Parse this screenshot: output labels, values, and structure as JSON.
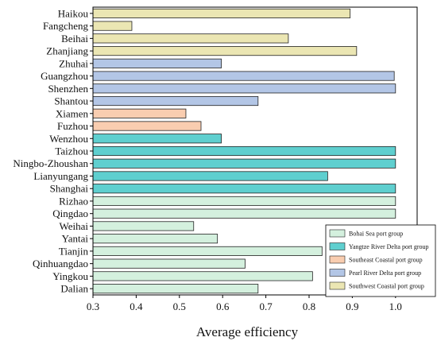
{
  "chart_data": {
    "type": "bar",
    "orientation": "horizontal",
    "xlabel": "Average efficiency",
    "xlim": [
      0.3,
      1.05
    ],
    "xticks": [
      "0.3",
      "0.4",
      "0.5",
      "0.6",
      "0.7",
      "0.8",
      "0.9",
      "1.0"
    ],
    "legend_position": "bottom-right",
    "groups": [
      {
        "name": "Bohai Sea port group",
        "color": "#d4f0de"
      },
      {
        "name": "Yangtze River Delta port group",
        "color": "#5fcfcf"
      },
      {
        "name": "Southeast Coastal port group",
        "color": "#f9cdb0"
      },
      {
        "name": "Pearl River Delta port group",
        "color": "#b3c6e6"
      },
      {
        "name": "Southwest Coastal port group",
        "color": "#ebe6b3"
      }
    ],
    "bars": [
      {
        "category": "Haikou",
        "value": 0.895,
        "group": 4
      },
      {
        "category": "Fangcheng",
        "value": 0.39,
        "group": 4
      },
      {
        "category": "Beihai",
        "value": 0.752,
        "group": 4
      },
      {
        "category": "Zhanjiang",
        "value": 0.91,
        "group": 4
      },
      {
        "category": "Zhuhai",
        "value": 0.597,
        "group": 3
      },
      {
        "category": "Guangzhou",
        "value": 0.997,
        "group": 3
      },
      {
        "category": "Shenzhen",
        "value": 1.0,
        "group": 3
      },
      {
        "category": "Shantou",
        "value": 0.682,
        "group": 3
      },
      {
        "category": "Xiamen",
        "value": 0.515,
        "group": 2
      },
      {
        "category": "Fuzhou",
        "value": 0.55,
        "group": 2
      },
      {
        "category": "Wenzhou",
        "value": 0.597,
        "group": 1
      },
      {
        "category": "Taizhou",
        "value": 1.0,
        "group": 1
      },
      {
        "category": "Ningbo-Zhoushan",
        "value": 1.0,
        "group": 1
      },
      {
        "category": "Lianyungang",
        "value": 0.843,
        "group": 1
      },
      {
        "category": "Shanghai",
        "value": 1.0,
        "group": 1
      },
      {
        "category": "Rizhao",
        "value": 1.0,
        "group": 0
      },
      {
        "category": "Qingdao",
        "value": 1.0,
        "group": 0
      },
      {
        "category": "Weihai",
        "value": 0.533,
        "group": 0
      },
      {
        "category": "Yantai",
        "value": 0.588,
        "group": 0
      },
      {
        "category": "Tianjin",
        "value": 0.83,
        "group": 0
      },
      {
        "category": "Qinhuangdao",
        "value": 0.652,
        "group": 0
      },
      {
        "category": "Yingkou",
        "value": 0.808,
        "group": 0
      },
      {
        "category": "Dalian",
        "value": 0.682,
        "group": 0
      }
    ]
  }
}
